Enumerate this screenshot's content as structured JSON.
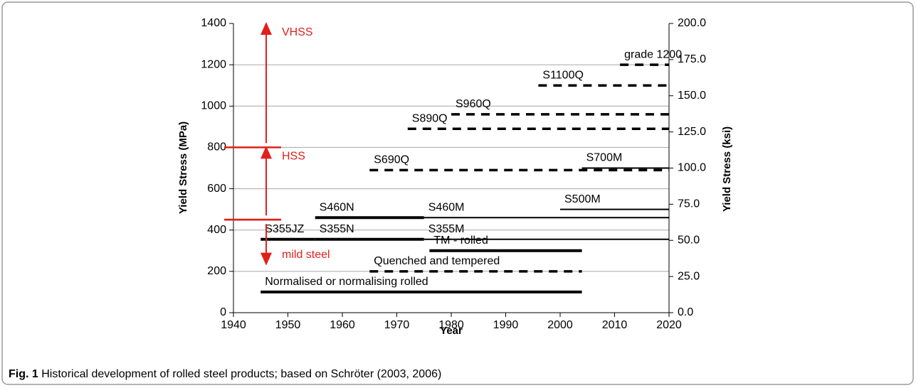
{
  "chart_data": {
    "type": "segments",
    "xlabel": "Year",
    "ylabel": "Yield Stress (MPa)",
    "y2label": "Yield Stress (ksi)",
    "xlim": [
      1940,
      2020
    ],
    "xticks": [
      1940,
      1950,
      1960,
      1970,
      1980,
      1990,
      2000,
      2010,
      2020
    ],
    "ylim": [
      0,
      1400
    ],
    "yticks": [
      0,
      200,
      400,
      600,
      800,
      1000,
      1200,
      1400
    ],
    "y2lim": [
      0,
      200
    ],
    "y2ticks": [
      {
        "value": 0,
        "label": "0.0"
      },
      {
        "value": 25,
        "label": "25.0"
      },
      {
        "value": 50,
        "label": "50.0"
      },
      {
        "value": 75,
        "label": "75.0"
      },
      {
        "value": 100,
        "label": "100.0"
      },
      {
        "value": 125,
        "label": "125.0"
      },
      {
        "value": 150,
        "label": "150.0"
      },
      {
        "value": 175,
        "label": "175.0"
      },
      {
        "value": 200,
        "label": "200.0"
      }
    ],
    "grid": true,
    "color": "#000000",
    "annotation_color": "#e0201b",
    "series": [
      {
        "name": "Normalised or normalising rolled",
        "x": [
          1945,
          2004
        ],
        "value": 100,
        "style": "thick"
      },
      {
        "name": "Quenched and tempered",
        "x": [
          1965,
          2004
        ],
        "value": 200,
        "style": "dashed"
      },
      {
        "name": "TM - rolled",
        "x": [
          1976,
          2004
        ],
        "value": 300,
        "style": "thick"
      },
      {
        "name": "S355JZ",
        "x": [
          1945,
          1955
        ],
        "value": 355,
        "style": "thick"
      },
      {
        "name": "S355N",
        "x": [
          1955,
          1975
        ],
        "value": 355,
        "style": "thick"
      },
      {
        "name": "S355M",
        "x": [
          1975,
          2020
        ],
        "value": 355,
        "style": "thin"
      },
      {
        "name": "S460N",
        "x": [
          1955,
          1975
        ],
        "value": 460,
        "style": "thick"
      },
      {
        "name": "S460M",
        "x": [
          1975,
          2020
        ],
        "value": 460,
        "style": "thin"
      },
      {
        "name": "S500M",
        "x": [
          2000,
          2020
        ],
        "value": 500,
        "style": "thin"
      },
      {
        "name": "S690Q",
        "x": [
          1965,
          2020
        ],
        "value": 690,
        "style": "dashed"
      },
      {
        "name": "S700M",
        "x": [
          2004,
          2020
        ],
        "value": 700,
        "style": "thin"
      },
      {
        "name": "S890Q",
        "x": [
          1972,
          2020
        ],
        "value": 890,
        "style": "dashed"
      },
      {
        "name": "S960Q",
        "x": [
          1980,
          2020
        ],
        "value": 960,
        "style": "dashed"
      },
      {
        "name": "S1100Q",
        "x": [
          1996,
          2020
        ],
        "value": 1100,
        "style": "dashed"
      },
      {
        "name": "grade 1200",
        "x": [
          2011,
          2020
        ],
        "value": 1200,
        "style": "dashed"
      }
    ],
    "annotations": [
      {
        "text": "VHSS",
        "from": 800,
        "to": 1400
      },
      {
        "text": "HSS",
        "from": 450,
        "to": 800
      },
      {
        "text": "mild steel",
        "from": 450,
        "to": 235
      }
    ]
  },
  "caption": {
    "label": "Fig. 1",
    "text": "Historical development of rolled steel products; based on Schröter (2003, 2006)"
  }
}
